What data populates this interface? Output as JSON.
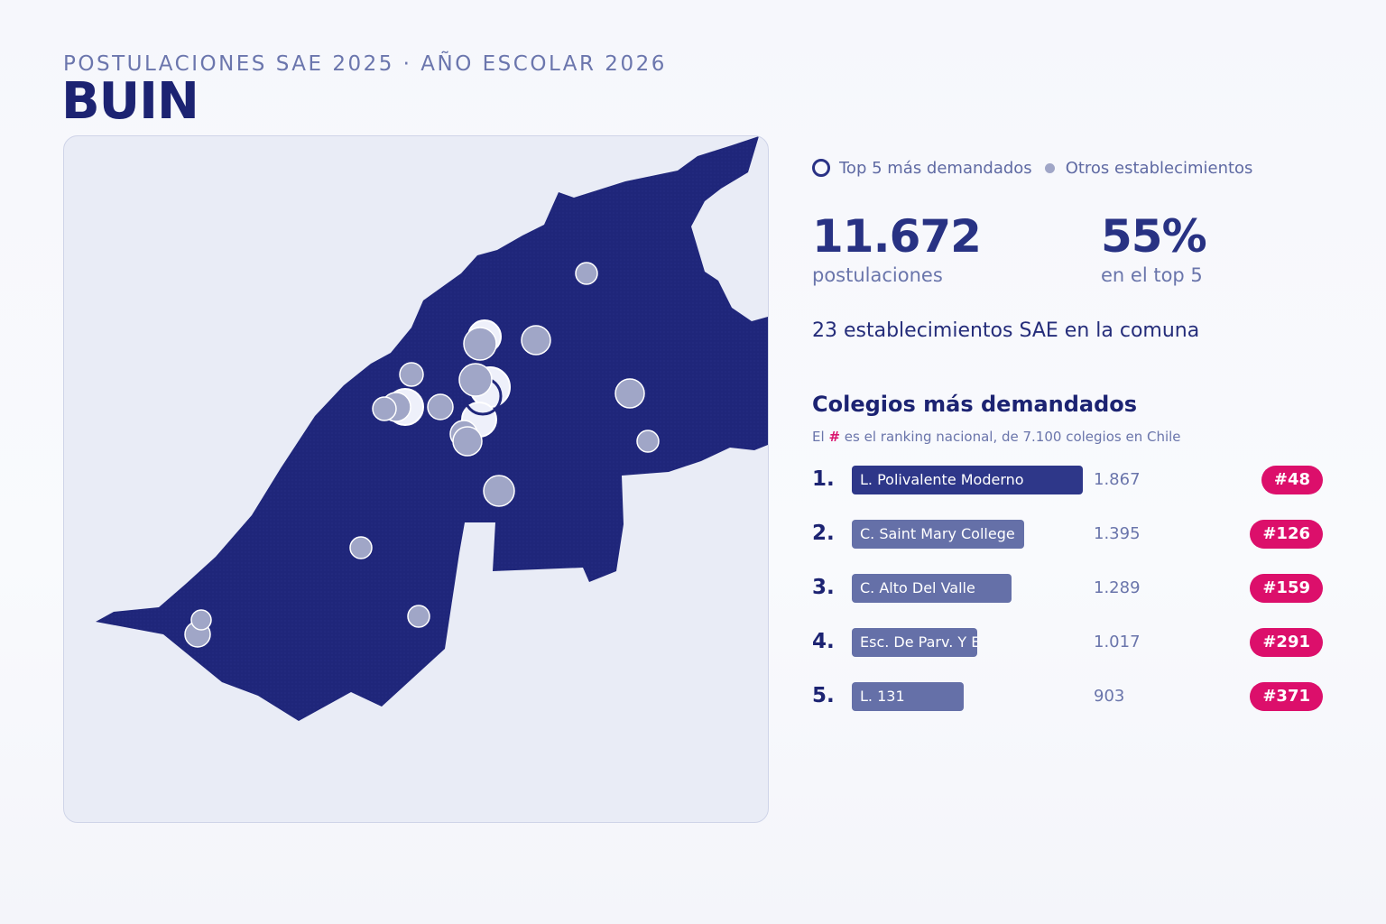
{
  "header": {
    "kicker": "POSTULACIONES SAE 2025 · AÑO ESCOLAR 2026",
    "title": "BUIN"
  },
  "colors": {
    "map_fill": "#1f267a",
    "accent": "#d9166f",
    "bar_top1": "#2e3789",
    "bar_other": "#6570a8"
  },
  "legend": {
    "top5_label": "Top 5 más demandados",
    "others_label": "Otros establecimientos"
  },
  "stats": {
    "applications_value": "11.672",
    "applications_label": "postulaciones",
    "top5_share_value": "55%",
    "top5_share_label": "en el top 5",
    "schools_count_text": "23 establecimientos SAE en la comuna"
  },
  "ranking": {
    "title": "Colegios más demandados",
    "note_prefix": "El",
    "note_hash": "#",
    "note_suffix": "es el ranking nacional, de 7.100 colegios en Chile",
    "items": [
      {
        "rank": "1.",
        "name": "L. Polivalente Moderno",
        "applications": "1.867",
        "applications_num": 1867,
        "national_rank": "#48"
      },
      {
        "rank": "2.",
        "name": "C. Saint Mary College",
        "applications": "1.395",
        "applications_num": 1395,
        "national_rank": "#126"
      },
      {
        "rank": "3.",
        "name": "C. Alto Del Valle",
        "applications": "1.289",
        "applications_num": 1289,
        "national_rank": "#159"
      },
      {
        "rank": "4.",
        "name": "Esc. De Parv. Y Esp. P",
        "applications": "1.017",
        "applications_num": 1017,
        "national_rank": "#291"
      },
      {
        "rank": "5.",
        "name": "L. 131",
        "applications": "903",
        "applications_num": 903,
        "national_rank": "#371"
      }
    ]
  }
}
